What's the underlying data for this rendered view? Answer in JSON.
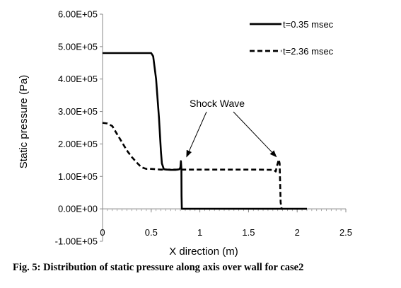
{
  "caption": "Fig. 5: Distribution of static pressure along axis over wall for case2",
  "annotation": "Shock Wave",
  "chart_data": {
    "type": "line",
    "title": "",
    "xlabel": "X direction (m)",
    "ylabel": "Static pressure (Pa)",
    "xlim": [
      0,
      2.5
    ],
    "ylim": [
      -100000,
      600000
    ],
    "x_ticks": [
      0,
      0.5,
      1,
      1.5,
      2,
      2.5
    ],
    "x_tick_labels": [
      "0",
      "0.5",
      "1",
      "1.5",
      "2",
      "2.5"
    ],
    "y_ticks": [
      -100000,
      0,
      100000,
      200000,
      300000,
      400000,
      500000,
      600000
    ],
    "y_tick_labels": [
      "-1.00E+05",
      "0.00E+00",
      "1.00E+05",
      "2.00E+05",
      "3.00E+05",
      "4.00E+05",
      "5.00E+05",
      "6.00E+05"
    ],
    "grid": false,
    "legend_position": "top-right",
    "series": [
      {
        "name": "t=0.35 msec",
        "style": "solid",
        "color": "#000000",
        "x": [
          0,
          0.5,
          0.52,
          0.55,
          0.58,
          0.6,
          0.61,
          0.63,
          0.66,
          0.7,
          0.75,
          0.79,
          0.8,
          0.805,
          0.81,
          0.812,
          0.815,
          0.82,
          0.83,
          1.0,
          1.5,
          2.0,
          2.1
        ],
        "y": [
          480000,
          480000,
          470000,
          400000,
          280000,
          175000,
          140000,
          122000,
          121000,
          120000,
          120000,
          122000,
          128000,
          147000,
          123000,
          40000,
          0,
          0,
          0,
          0,
          0,
          0,
          0
        ]
      },
      {
        "name": "t=2.36 msec",
        "style": "dashed",
        "color": "#000000",
        "x": [
          0,
          0.05,
          0.1,
          0.15,
          0.2,
          0.25,
          0.3,
          0.35,
          0.4,
          0.45,
          0.5,
          0.55,
          0.6,
          0.8,
          1.0,
          1.2,
          1.4,
          1.6,
          1.76,
          1.78,
          1.79,
          1.8,
          1.81,
          1.82,
          1.825,
          1.83,
          1.84,
          1.85
        ],
        "y": [
          265000,
          263000,
          255000,
          230000,
          205000,
          180000,
          160000,
          143000,
          128000,
          123000,
          123000,
          122000,
          121000,
          121000,
          121000,
          121000,
          121000,
          121000,
          120000,
          115000,
          130000,
          140000,
          152000,
          140000,
          80000,
          20000,
          0,
          0
        ]
      }
    ],
    "annotations": [
      {
        "text": "Shock Wave",
        "arrows_to": [
          [
            0.82,
            130000
          ],
          [
            1.8,
            130000
          ]
        ]
      }
    ]
  }
}
